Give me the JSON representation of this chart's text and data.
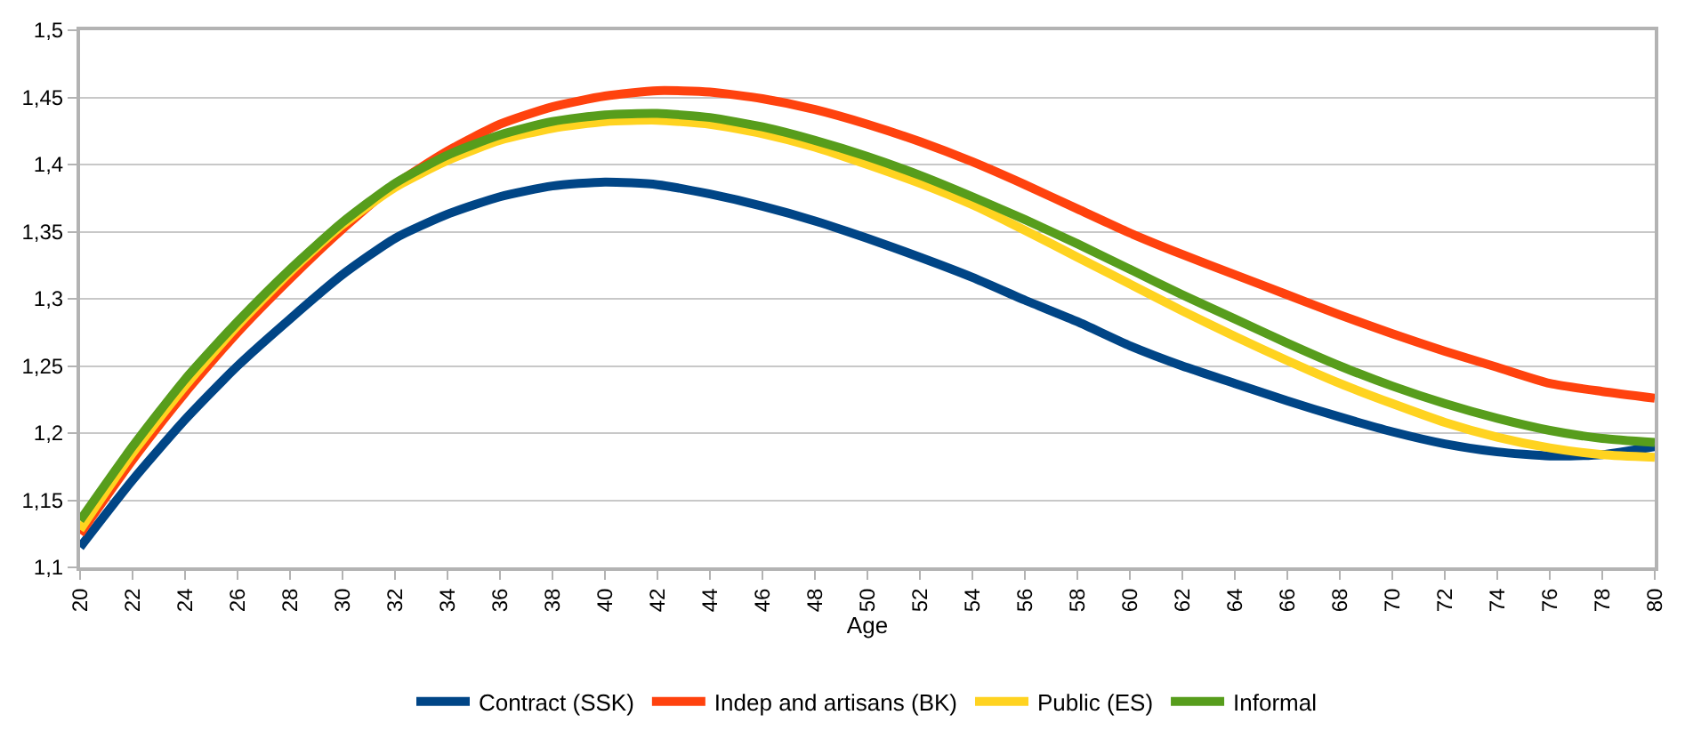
{
  "chart_data": {
    "type": "line",
    "xlabel": "Age",
    "x": [
      20,
      22,
      24,
      26,
      28,
      30,
      32,
      34,
      36,
      38,
      40,
      42,
      44,
      46,
      48,
      50,
      52,
      54,
      56,
      58,
      60,
      62,
      64,
      66,
      68,
      70,
      72,
      74,
      76,
      78,
      80
    ],
    "series": [
      {
        "name": "Contract (SSK)",
        "color": "#004586",
        "values": [
          1.115,
          1.165,
          1.21,
          1.25,
          1.285,
          1.318,
          1.345,
          1.363,
          1.376,
          1.384,
          1.387,
          1.385,
          1.378,
          1.369,
          1.358,
          1.345,
          1.331,
          1.316,
          1.299,
          1.283,
          1.265,
          1.25,
          1.237,
          1.224,
          1.212,
          1.201,
          1.192,
          1.186,
          1.183,
          1.184,
          1.19
        ]
      },
      {
        "name": "Indep and artisans (BK)",
        "color": "#ff420e",
        "values": [
          1.125,
          1.18,
          1.23,
          1.275,
          1.315,
          1.352,
          1.385,
          1.41,
          1.43,
          1.443,
          1.451,
          1.455,
          1.454,
          1.449,
          1.441,
          1.43,
          1.417,
          1.402,
          1.385,
          1.367,
          1.349,
          1.333,
          1.318,
          1.303,
          1.288,
          1.274,
          1.261,
          1.249,
          1.237,
          1.231,
          1.226
        ]
      },
      {
        "name": "Public (ES)",
        "color": "#ffd320",
        "values": [
          1.128,
          1.185,
          1.235,
          1.28,
          1.32,
          1.355,
          1.383,
          1.403,
          1.418,
          1.427,
          1.432,
          1.433,
          1.43,
          1.423,
          1.413,
          1.4,
          1.386,
          1.37,
          1.351,
          1.331,
          1.311,
          1.291,
          1.272,
          1.254,
          1.237,
          1.222,
          1.208,
          1.197,
          1.189,
          1.184,
          1.182
        ]
      },
      {
        "name": "Informal",
        "color": "#579d1c",
        "values": [
          1.135,
          1.19,
          1.24,
          1.283,
          1.322,
          1.357,
          1.386,
          1.407,
          1.422,
          1.432,
          1.437,
          1.438,
          1.435,
          1.428,
          1.418,
          1.406,
          1.392,
          1.376,
          1.359,
          1.341,
          1.322,
          1.303,
          1.285,
          1.267,
          1.25,
          1.235,
          1.222,
          1.211,
          1.202,
          1.196,
          1.193
        ]
      }
    ],
    "xlim": [
      20,
      80
    ],
    "xticks": [
      20,
      22,
      24,
      26,
      28,
      30,
      32,
      34,
      36,
      38,
      40,
      42,
      44,
      46,
      48,
      50,
      52,
      54,
      56,
      58,
      60,
      62,
      64,
      66,
      68,
      70,
      72,
      74,
      76,
      78,
      80
    ],
    "ylim": [
      1.1,
      1.5
    ],
    "yticks": [
      {
        "value": 1.1,
        "label": "1,1"
      },
      {
        "value": 1.15,
        "label": "1,15"
      },
      {
        "value": 1.2,
        "label": "1,2"
      },
      {
        "value": 1.25,
        "label": "1,25"
      },
      {
        "value": 1.3,
        "label": "1,3"
      },
      {
        "value": 1.35,
        "label": "1,35"
      },
      {
        "value": 1.4,
        "label": "1,4"
      },
      {
        "value": 1.45,
        "label": "1,45"
      },
      {
        "value": 1.5,
        "label": "1,5"
      }
    ],
    "grid": "y",
    "legend": "bottom",
    "marker": "none",
    "line_style": "solid"
  }
}
